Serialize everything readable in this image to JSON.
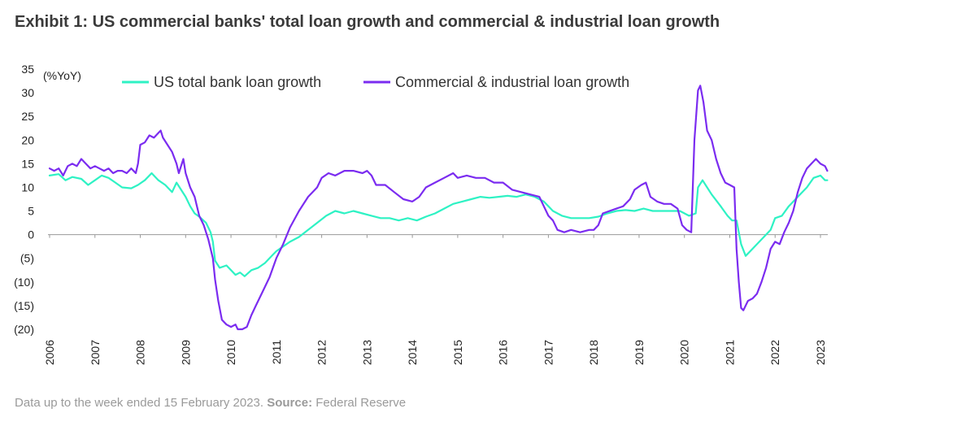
{
  "title": "Exhibit 1: US commercial banks' total loan growth and commercial & industrial loan growth",
  "footer": {
    "note": "Data up to the week ended 15 February 2023.",
    "source_label": "Source:",
    "source": "Federal Reserve"
  },
  "colors": {
    "total": "#2ef2c4",
    "ci": "#7b2cf0",
    "axis": "#999999"
  },
  "chart_data": {
    "type": "line",
    "unit_label": "(%YoY)",
    "ylim": [
      -20,
      35
    ],
    "y_ticks": [
      {
        "value": 35,
        "label": "35"
      },
      {
        "value": 30,
        "label": "30"
      },
      {
        "value": 25,
        "label": "25"
      },
      {
        "value": 20,
        "label": "20"
      },
      {
        "value": 15,
        "label": "15"
      },
      {
        "value": 10,
        "label": "10"
      },
      {
        "value": 5,
        "label": "5"
      },
      {
        "value": 0,
        "label": "0"
      },
      {
        "value": -5,
        "label": "(5)"
      },
      {
        "value": -10,
        "label": "(10)"
      },
      {
        "value": -15,
        "label": "(15)"
      },
      {
        "value": -20,
        "label": "(20)"
      }
    ],
    "xlim": [
      2006.0,
      2023.2
    ],
    "x_ticks": [
      "2006",
      "2007",
      "2008",
      "2009",
      "2010",
      "2011",
      "2012",
      "2013",
      "2014",
      "2015",
      "2016",
      "2017",
      "2018",
      "2019",
      "2020",
      "2021",
      "2022",
      "2023"
    ],
    "legend_position": "top",
    "grid": false,
    "series": [
      {
        "name": "US total bank loan growth",
        "key": "total",
        "points": [
          [
            2006.0,
            12.5
          ],
          [
            2006.2,
            12.8
          ],
          [
            2006.35,
            11.5
          ],
          [
            2006.5,
            12.2
          ],
          [
            2006.7,
            11.8
          ],
          [
            2006.85,
            10.5
          ],
          [
            2007.0,
            11.5
          ],
          [
            2007.15,
            12.5
          ],
          [
            2007.3,
            12.0
          ],
          [
            2007.45,
            11.0
          ],
          [
            2007.6,
            10.0
          ],
          [
            2007.8,
            9.8
          ],
          [
            2007.95,
            10.5
          ],
          [
            2008.1,
            11.5
          ],
          [
            2008.25,
            13.0
          ],
          [
            2008.4,
            11.5
          ],
          [
            2008.55,
            10.5
          ],
          [
            2008.7,
            9.0
          ],
          [
            2008.8,
            11.0
          ],
          [
            2008.9,
            9.5
          ],
          [
            2009.0,
            8.0
          ],
          [
            2009.1,
            6.0
          ],
          [
            2009.2,
            4.5
          ],
          [
            2009.3,
            3.8
          ],
          [
            2009.45,
            2.5
          ],
          [
            2009.55,
            0.5
          ],
          [
            2009.6,
            -1.5
          ],
          [
            2009.65,
            -5.5
          ],
          [
            2009.75,
            -7.0
          ],
          [
            2009.9,
            -6.5
          ],
          [
            2010.0,
            -7.5
          ],
          [
            2010.1,
            -8.5
          ],
          [
            2010.2,
            -8.0
          ],
          [
            2010.3,
            -8.8
          ],
          [
            2010.45,
            -7.5
          ],
          [
            2010.6,
            -7.0
          ],
          [
            2010.75,
            -6.0
          ],
          [
            2010.9,
            -4.5
          ],
          [
            2011.0,
            -3.5
          ],
          [
            2011.15,
            -2.5
          ],
          [
            2011.3,
            -1.5
          ],
          [
            2011.5,
            -0.5
          ],
          [
            2011.7,
            1.0
          ],
          [
            2011.9,
            2.5
          ],
          [
            2012.1,
            4.0
          ],
          [
            2012.3,
            5.0
          ],
          [
            2012.5,
            4.5
          ],
          [
            2012.7,
            5.0
          ],
          [
            2012.9,
            4.5
          ],
          [
            2013.1,
            4.0
          ],
          [
            2013.3,
            3.5
          ],
          [
            2013.5,
            3.5
          ],
          [
            2013.7,
            3.0
          ],
          [
            2013.9,
            3.5
          ],
          [
            2014.1,
            3.0
          ],
          [
            2014.3,
            3.8
          ],
          [
            2014.5,
            4.5
          ],
          [
            2014.7,
            5.5
          ],
          [
            2014.9,
            6.5
          ],
          [
            2015.1,
            7.0
          ],
          [
            2015.3,
            7.5
          ],
          [
            2015.5,
            8.0
          ],
          [
            2015.7,
            7.8
          ],
          [
            2015.9,
            8.0
          ],
          [
            2016.1,
            8.2
          ],
          [
            2016.3,
            8.0
          ],
          [
            2016.5,
            8.5
          ],
          [
            2016.7,
            8.0
          ],
          [
            2016.9,
            7.0
          ],
          [
            2017.0,
            6.0
          ],
          [
            2017.1,
            5.0
          ],
          [
            2017.3,
            4.0
          ],
          [
            2017.5,
            3.5
          ],
          [
            2017.7,
            3.5
          ],
          [
            2017.9,
            3.5
          ],
          [
            2018.1,
            3.8
          ],
          [
            2018.3,
            4.5
          ],
          [
            2018.5,
            5.0
          ],
          [
            2018.7,
            5.2
          ],
          [
            2018.9,
            5.0
          ],
          [
            2019.1,
            5.5
          ],
          [
            2019.3,
            5.0
          ],
          [
            2019.5,
            5.0
          ],
          [
            2019.7,
            5.0
          ],
          [
            2019.9,
            5.0
          ],
          [
            2020.1,
            4.0
          ],
          [
            2020.25,
            4.5
          ],
          [
            2020.3,
            10.0
          ],
          [
            2020.4,
            11.5
          ],
          [
            2020.5,
            10.0
          ],
          [
            2020.6,
            8.5
          ],
          [
            2020.8,
            6.0
          ],
          [
            2020.95,
            4.0
          ],
          [
            2021.05,
            3.0
          ],
          [
            2021.15,
            3.0
          ],
          [
            2021.25,
            -2.0
          ],
          [
            2021.35,
            -4.5
          ],
          [
            2021.5,
            -3.0
          ],
          [
            2021.7,
            -1.0
          ],
          [
            2021.9,
            1.0
          ],
          [
            2022.0,
            3.5
          ],
          [
            2022.15,
            4.0
          ],
          [
            2022.3,
            6.0
          ],
          [
            2022.5,
            8.0
          ],
          [
            2022.7,
            10.0
          ],
          [
            2022.85,
            12.0
          ],
          [
            2023.0,
            12.5
          ],
          [
            2023.1,
            11.5
          ],
          [
            2023.15,
            11.5
          ]
        ]
      },
      {
        "name": "Commercial & industrial loan growth",
        "key": "ci",
        "points": [
          [
            2006.0,
            14.0
          ],
          [
            2006.1,
            13.5
          ],
          [
            2006.2,
            14.0
          ],
          [
            2006.3,
            12.5
          ],
          [
            2006.4,
            14.5
          ],
          [
            2006.5,
            15.0
          ],
          [
            2006.6,
            14.5
          ],
          [
            2006.7,
            16.0
          ],
          [
            2006.8,
            15.0
          ],
          [
            2006.9,
            14.0
          ],
          [
            2007.0,
            14.5
          ],
          [
            2007.1,
            14.0
          ],
          [
            2007.2,
            13.5
          ],
          [
            2007.3,
            14.0
          ],
          [
            2007.4,
            13.0
          ],
          [
            2007.5,
            13.5
          ],
          [
            2007.6,
            13.5
          ],
          [
            2007.7,
            13.0
          ],
          [
            2007.8,
            14.0
          ],
          [
            2007.9,
            13.0
          ],
          [
            2007.95,
            15.0
          ],
          [
            2008.0,
            19.0
          ],
          [
            2008.1,
            19.5
          ],
          [
            2008.2,
            21.0
          ],
          [
            2008.3,
            20.5
          ],
          [
            2008.4,
            21.5
          ],
          [
            2008.45,
            22.0
          ],
          [
            2008.5,
            20.5
          ],
          [
            2008.6,
            19.0
          ],
          [
            2008.7,
            17.5
          ],
          [
            2008.8,
            15.0
          ],
          [
            2008.85,
            13.0
          ],
          [
            2008.95,
            16.0
          ],
          [
            2009.0,
            13.0
          ],
          [
            2009.1,
            10.0
          ],
          [
            2009.2,
            8.0
          ],
          [
            2009.3,
            4.0
          ],
          [
            2009.4,
            2.0
          ],
          [
            2009.5,
            -1.0
          ],
          [
            2009.6,
            -5.0
          ],
          [
            2009.65,
            -9.5
          ],
          [
            2009.72,
            -14.0
          ],
          [
            2009.8,
            -18.0
          ],
          [
            2009.9,
            -19.0
          ],
          [
            2010.0,
            -19.5
          ],
          [
            2010.1,
            -19.0
          ],
          [
            2010.15,
            -20.0
          ],
          [
            2010.25,
            -20.0
          ],
          [
            2010.35,
            -19.5
          ],
          [
            2010.45,
            -17.0
          ],
          [
            2010.55,
            -15.0
          ],
          [
            2010.7,
            -12.0
          ],
          [
            2010.85,
            -9.0
          ],
          [
            2011.0,
            -5.0
          ],
          [
            2011.15,
            -2.0
          ],
          [
            2011.3,
            1.5
          ],
          [
            2011.5,
            5.0
          ],
          [
            2011.7,
            8.0
          ],
          [
            2011.9,
            10.0
          ],
          [
            2012.0,
            12.0
          ],
          [
            2012.15,
            13.0
          ],
          [
            2012.3,
            12.5
          ],
          [
            2012.5,
            13.5
          ],
          [
            2012.7,
            13.5
          ],
          [
            2012.9,
            13.0
          ],
          [
            2013.0,
            13.5
          ],
          [
            2013.1,
            12.5
          ],
          [
            2013.2,
            10.5
          ],
          [
            2013.4,
            10.5
          ],
          [
            2013.6,
            9.0
          ],
          [
            2013.8,
            7.5
          ],
          [
            2014.0,
            7.0
          ],
          [
            2014.15,
            8.0
          ],
          [
            2014.3,
            10.0
          ],
          [
            2014.5,
            11.0
          ],
          [
            2014.7,
            12.0
          ],
          [
            2014.9,
            13.0
          ],
          [
            2015.0,
            12.0
          ],
          [
            2015.2,
            12.5
          ],
          [
            2015.4,
            12.0
          ],
          [
            2015.6,
            12.0
          ],
          [
            2015.8,
            11.0
          ],
          [
            2016.0,
            11.0
          ],
          [
            2016.2,
            9.5
          ],
          [
            2016.4,
            9.0
          ],
          [
            2016.6,
            8.5
          ],
          [
            2016.8,
            8.0
          ],
          [
            2016.9,
            6.0
          ],
          [
            2017.0,
            4.0
          ],
          [
            2017.1,
            3.0
          ],
          [
            2017.2,
            1.0
          ],
          [
            2017.35,
            0.5
          ],
          [
            2017.5,
            1.0
          ],
          [
            2017.7,
            0.5
          ],
          [
            2017.9,
            1.0
          ],
          [
            2018.0,
            1.0
          ],
          [
            2018.1,
            2.0
          ],
          [
            2018.2,
            4.5
          ],
          [
            2018.35,
            5.0
          ],
          [
            2018.5,
            5.5
          ],
          [
            2018.65,
            6.0
          ],
          [
            2018.8,
            7.5
          ],
          [
            2018.9,
            9.5
          ],
          [
            2019.05,
            10.5
          ],
          [
            2019.15,
            11.0
          ],
          [
            2019.25,
            8.0
          ],
          [
            2019.4,
            7.0
          ],
          [
            2019.55,
            6.5
          ],
          [
            2019.7,
            6.5
          ],
          [
            2019.85,
            5.5
          ],
          [
            2019.95,
            2.0
          ],
          [
            2020.05,
            1.0
          ],
          [
            2020.15,
            0.5
          ],
          [
            2020.22,
            20.0
          ],
          [
            2020.3,
            30.5
          ],
          [
            2020.35,
            31.5
          ],
          [
            2020.42,
            28.0
          ],
          [
            2020.5,
            22.0
          ],
          [
            2020.6,
            20.0
          ],
          [
            2020.7,
            16.0
          ],
          [
            2020.8,
            13.0
          ],
          [
            2020.9,
            11.0
          ],
          [
            2021.0,
            10.5
          ],
          [
            2021.1,
            10.0
          ],
          [
            2021.15,
            -3.0
          ],
          [
            2021.2,
            -10.0
          ],
          [
            2021.25,
            -15.5
          ],
          [
            2021.3,
            -16.0
          ],
          [
            2021.4,
            -14.0
          ],
          [
            2021.5,
            -13.5
          ],
          [
            2021.6,
            -12.5
          ],
          [
            2021.7,
            -10.0
          ],
          [
            2021.8,
            -7.0
          ],
          [
            2021.9,
            -3.0
          ],
          [
            2022.0,
            -1.5
          ],
          [
            2022.1,
            -2.0
          ],
          [
            2022.2,
            0.5
          ],
          [
            2022.3,
            2.5
          ],
          [
            2022.4,
            5.0
          ],
          [
            2022.5,
            9.0
          ],
          [
            2022.6,
            12.0
          ],
          [
            2022.7,
            14.0
          ],
          [
            2022.8,
            15.0
          ],
          [
            2022.9,
            16.0
          ],
          [
            2023.0,
            15.0
          ],
          [
            2023.1,
            14.5
          ],
          [
            2023.15,
            13.5
          ]
        ]
      }
    ]
  }
}
